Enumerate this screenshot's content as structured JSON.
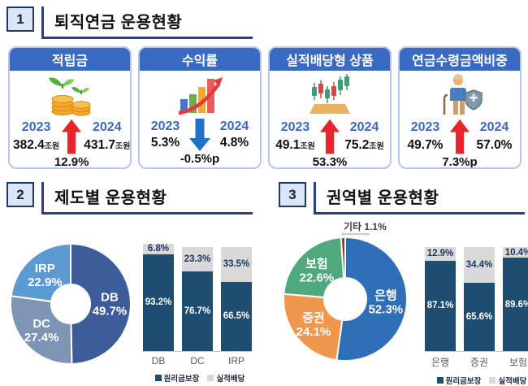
{
  "sec1": {
    "number": "1",
    "title": "퇴직연금 운용현황",
    "cards": [
      {
        "header": "적립금",
        "icon": "coin-stacks-sprout-icon",
        "year_left": "2023",
        "year_right": "2024",
        "value_left": "382.4",
        "suffix_left": "조원",
        "value_right": "431.7",
        "suffix_right": "조원",
        "trend": "up",
        "delta": "12.9%"
      },
      {
        "header": "수익률",
        "icon": "rising-bars-arrow-icon",
        "year_left": "2023",
        "year_right": "2024",
        "value_left": "5.3%",
        "suffix_left": "",
        "value_right": "4.8%",
        "suffix_right": "",
        "trend": "down",
        "delta": "-0.5%p"
      },
      {
        "header": "실적배당형 상품",
        "icon": "candlestick-chart-icon",
        "year_left": "2023",
        "year_right": "2024",
        "value_left": "49.1",
        "suffix_left": "조원",
        "value_right": "75.2",
        "suffix_right": "조원",
        "trend": "up",
        "delta": "53.3%"
      },
      {
        "header": "연금수령금액비중",
        "icon": "retiree-shield-icon",
        "year_left": "2023",
        "year_right": "2024",
        "value_left": "49.7%",
        "suffix_left": "",
        "value_right": "57.0%",
        "suffix_right": "",
        "trend": "up",
        "delta": "7.3%p"
      }
    ]
  },
  "sec2": {
    "number": "2",
    "title": "제도별 운용현황"
  },
  "sec3": {
    "number": "3",
    "title": "권역별 운용현황"
  },
  "chart_data": [
    {
      "id": "donut-by-plan",
      "type": "pie",
      "donut": true,
      "title": "제도별 운용현황",
      "labels": [
        "DB",
        "DC",
        "IRP"
      ],
      "values": [
        49.7,
        27.4,
        22.9
      ],
      "unit": "%",
      "colors": [
        "#3e5c99",
        "#7e94b5",
        "#5b9ad2"
      ],
      "start": "12-oclock-clockwise",
      "legend_position": "none"
    },
    {
      "id": "stacked-by-plan",
      "type": "bar",
      "stacked": true,
      "categories": [
        "DB",
        "DC",
        "IRP"
      ],
      "series": [
        {
          "name": "원리금보장",
          "values": [
            93.2,
            76.7,
            66.5
          ],
          "color": "#1d4d70",
          "label_color": "#ffffff"
        },
        {
          "name": "실적배당",
          "values": [
            6.8,
            23.3,
            33.5
          ],
          "color": "#d9d9d9",
          "label_color": "#17375e"
        }
      ],
      "ylim": [
        0,
        100
      ],
      "unit": "%",
      "grid": false,
      "legend_position": "bottom"
    },
    {
      "id": "donut-by-sector",
      "type": "pie",
      "donut": true,
      "title": "권역별 운용현황",
      "labels": [
        "은행",
        "증권",
        "보험",
        "기타"
      ],
      "values": [
        52.3,
        24.1,
        22.6,
        1.1
      ],
      "unit": "%",
      "colors": [
        "#2e6fb8",
        "#f0964e",
        "#4ea97c",
        "#993a22"
      ],
      "outside_labels": [
        "기타"
      ],
      "start": "12-oclock-clockwise",
      "legend_position": "none"
    },
    {
      "id": "stacked-by-sector",
      "type": "bar",
      "stacked": true,
      "categories": [
        "은행",
        "증권",
        "보험"
      ],
      "series": [
        {
          "name": "원리금보장",
          "values": [
            87.1,
            65.6,
            89.6
          ],
          "color": "#1d4d70",
          "label_color": "#ffffff"
        },
        {
          "name": "실적배당",
          "values": [
            12.9,
            34.4,
            10.4
          ],
          "color": "#d9d9d9",
          "label_color": "#17375e"
        }
      ],
      "ylim": [
        0,
        100
      ],
      "unit": "%",
      "grid": false,
      "legend_position": "bottom"
    }
  ],
  "colors": {
    "card_header_blue": "#3a6ac1",
    "card_border": "#b7c7e8",
    "title_rule": "#2a3f8c",
    "num_box_bg": "#dbe6f5",
    "num_box_border": "#1f3864",
    "year_text": "#3b67c4",
    "up_arrow_red": "#e8252a",
    "down_arrow_blue": "#1e72c8",
    "bar_navy": "#1d4d70",
    "bar_gray": "#d9d9d9"
  }
}
